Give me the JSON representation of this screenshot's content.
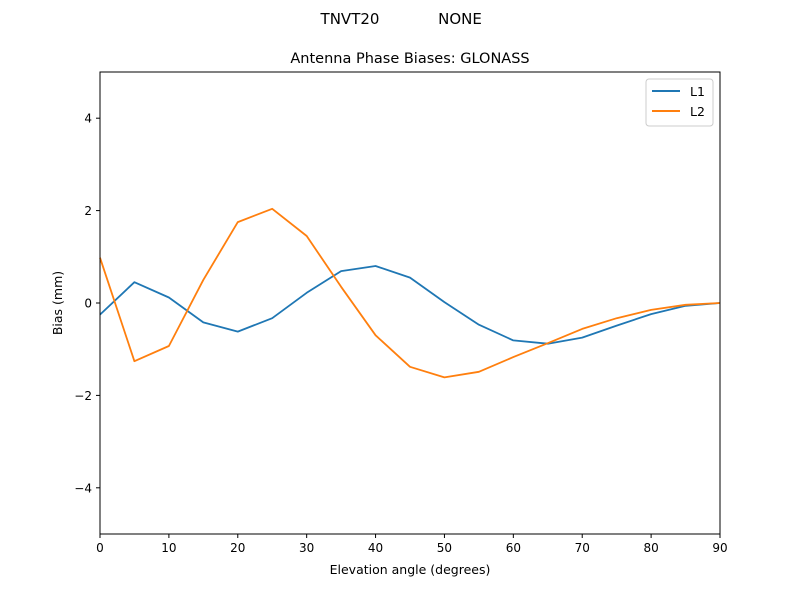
{
  "figure": {
    "suptitle_left": "TNVT20",
    "suptitle_right": "NONE"
  },
  "chart_data": {
    "type": "line",
    "title": "Antenna Phase Biases: GLONASS",
    "xlabel": "Elevation angle (degrees)",
    "ylabel": "Bias (mm)",
    "xlim": [
      0,
      90
    ],
    "ylim": [
      -5,
      5
    ],
    "xticks": [
      0,
      10,
      20,
      30,
      40,
      50,
      60,
      70,
      80,
      90
    ],
    "yticks": [
      -4,
      -2,
      0,
      2,
      4
    ],
    "ytick_labels": [
      "−4",
      "−2",
      "0",
      "2",
      "4"
    ],
    "grid": false,
    "legend_position": "upper right",
    "x": [
      0,
      5,
      10,
      15,
      20,
      25,
      30,
      35,
      40,
      45,
      50,
      55,
      60,
      65,
      70,
      75,
      80,
      85,
      90
    ],
    "series": [
      {
        "name": "L1",
        "color": "#1f77b4",
        "values": [
          -0.25,
          0.45,
          0.12,
          -0.42,
          -0.62,
          -0.33,
          0.22,
          0.69,
          0.8,
          0.55,
          0.02,
          -0.47,
          -0.81,
          -0.88,
          -0.75,
          -0.49,
          -0.24,
          -0.06,
          0.0
        ]
      },
      {
        "name": "L2",
        "color": "#ff7f0e",
        "values": [
          0.98,
          -1.26,
          -0.93,
          0.5,
          1.75,
          2.04,
          1.45,
          0.35,
          -0.7,
          -1.38,
          -1.61,
          -1.49,
          -1.17,
          -0.87,
          -0.56,
          -0.33,
          -0.15,
          -0.04,
          0.0
        ]
      }
    ]
  }
}
